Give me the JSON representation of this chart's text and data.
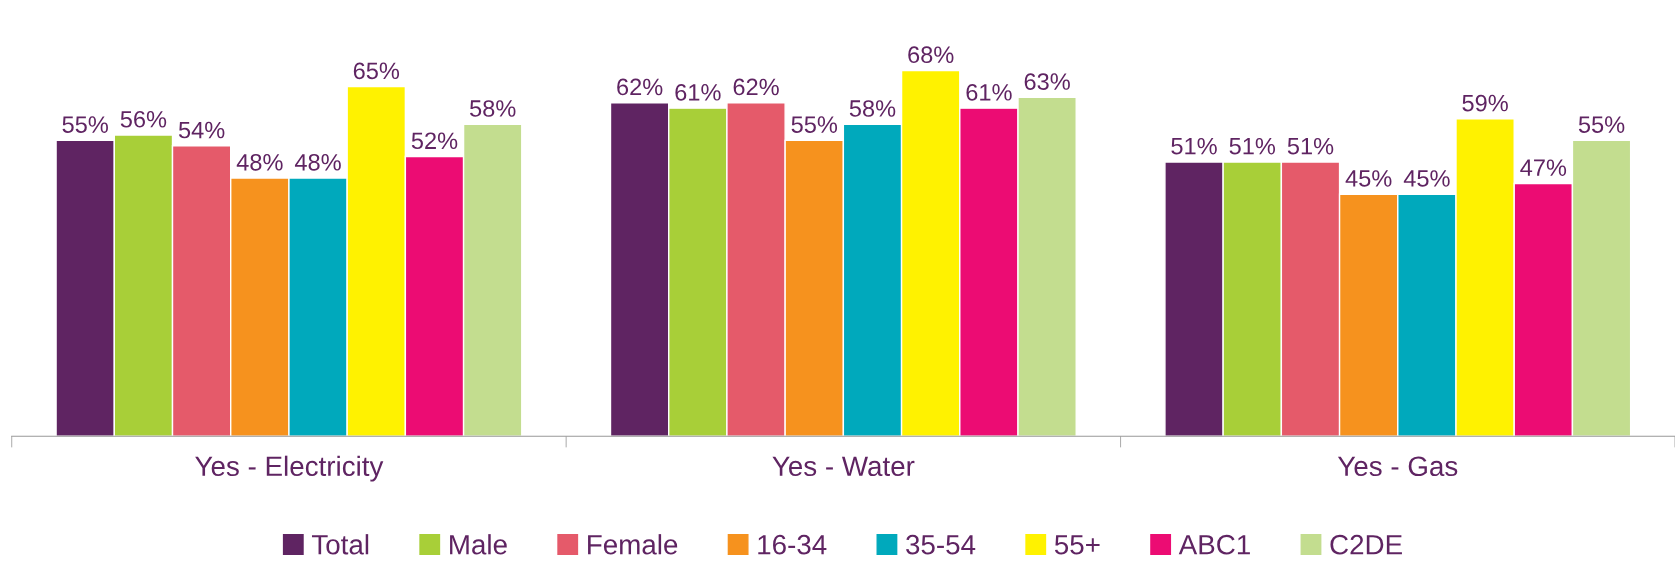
{
  "chart_data": {
    "type": "bar",
    "categories": [
      "Yes - Electricity",
      "Yes - Water",
      "Yes - Gas"
    ],
    "series": [
      {
        "name": "Total",
        "color": "#5f2462",
        "values": [
          55,
          62,
          51
        ],
        "value_labels": [
          "55%",
          "62%",
          "51%"
        ]
      },
      {
        "name": "Male",
        "color": "#a8cf38",
        "values": [
          56,
          61,
          51
        ],
        "value_labels": [
          "56%",
          "61%",
          "51%"
        ]
      },
      {
        "name": "Female",
        "color": "#e55a6a",
        "values": [
          54,
          62,
          51
        ],
        "value_labels": [
          "54%",
          "62%",
          "51%"
        ]
      },
      {
        "name": "16-34",
        "color": "#f6921e",
        "values": [
          48,
          55,
          45
        ],
        "value_labels": [
          "48%",
          "55%",
          "45%"
        ]
      },
      {
        "name": "35-54",
        "color": "#00a9bc",
        "values": [
          48,
          58,
          45
        ],
        "value_labels": [
          "48%",
          "58%",
          "45%"
        ]
      },
      {
        "name": "55+",
        "color": "#fff200",
        "values": [
          65,
          68,
          59
        ],
        "value_labels": [
          "65%",
          "68%",
          "59%"
        ]
      },
      {
        "name": "ABC1",
        "color": "#ec0c73",
        "values": [
          52,
          61,
          47
        ],
        "value_labels": [
          "52%",
          "61%",
          "47%"
        ]
      },
      {
        "name": "C2DE",
        "color": "#c3dd8f",
        "values": [
          58,
          63,
          55
        ],
        "value_labels": [
          "58%",
          "63%",
          "55%"
        ]
      }
    ],
    "legend": "bottom",
    "grid": false
  }
}
